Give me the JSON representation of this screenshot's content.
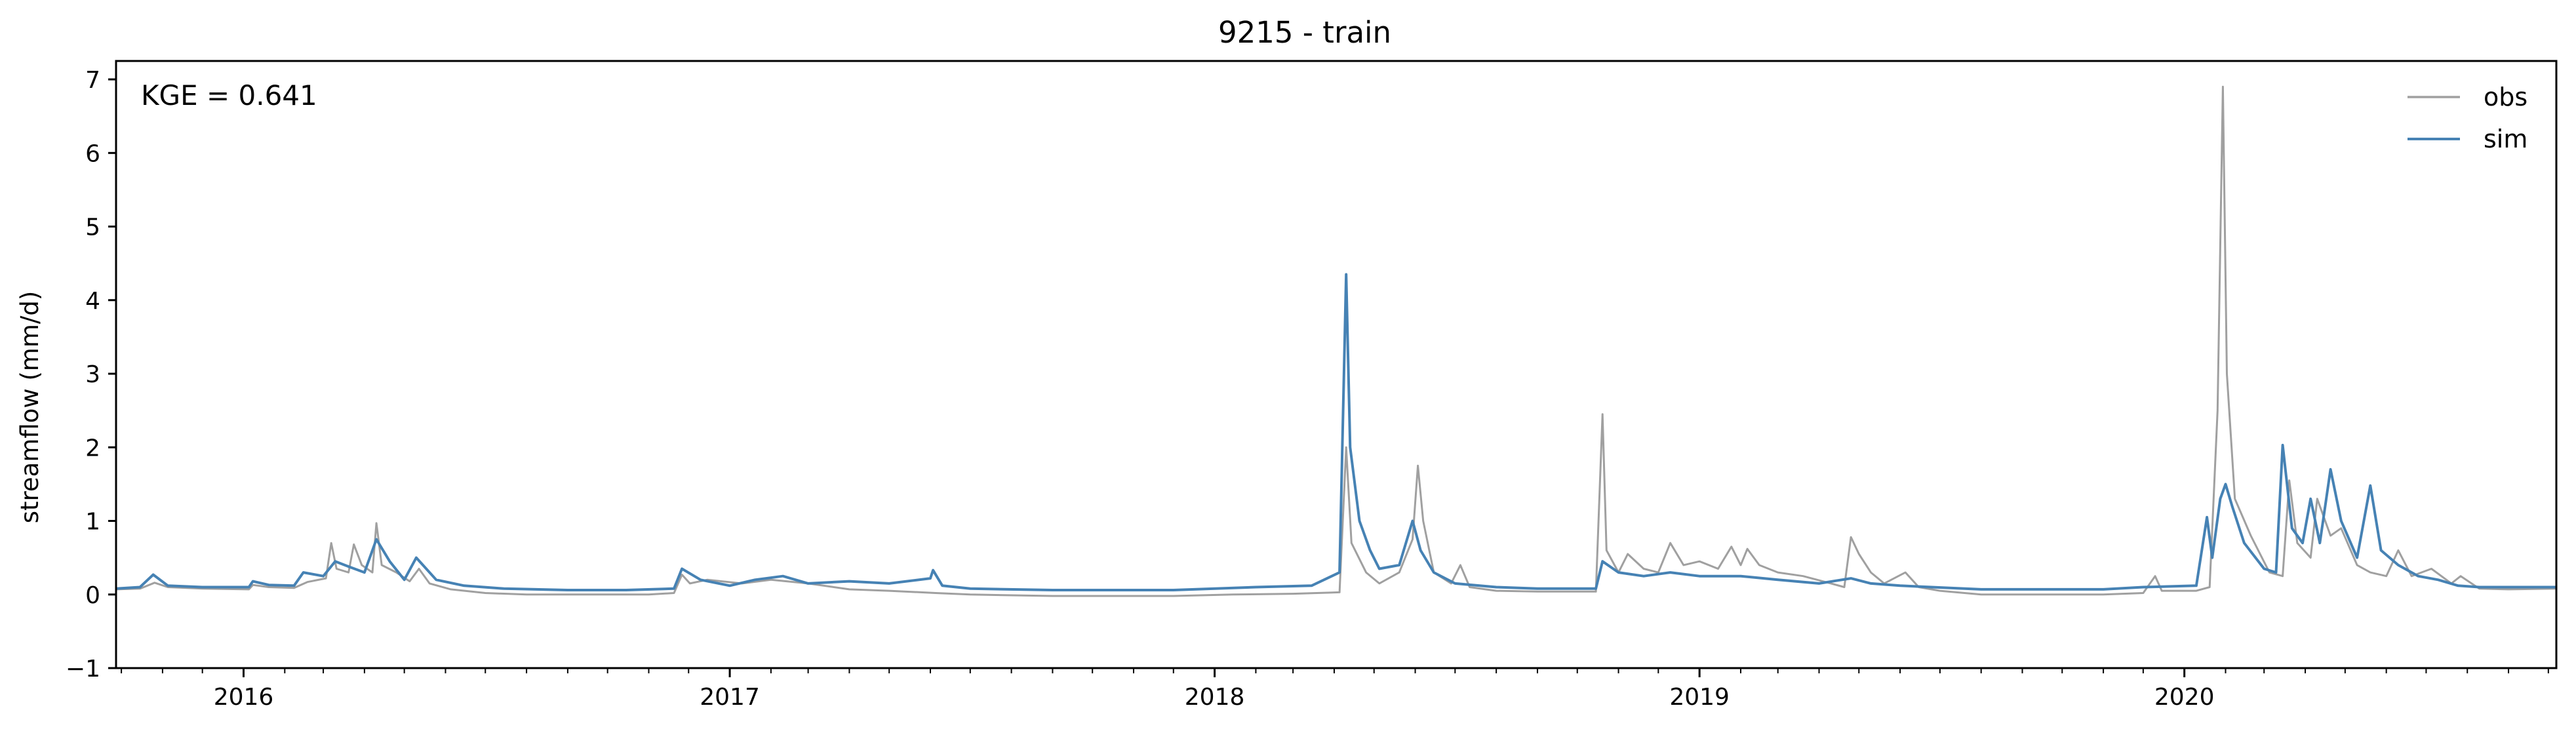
{
  "chart_data": {
    "type": "line",
    "title": "9215 - train",
    "xlabel": "",
    "ylabel": "streamflow (mm/d)",
    "xlim": [
      "2015-09-27",
      "2020-10-07"
    ],
    "ylim": [
      -1,
      7.25
    ],
    "x_tick_labels": [
      "2016",
      "2017",
      "2018",
      "2019",
      "2020"
    ],
    "y_tick_labels": [
      "−1",
      "0",
      "1",
      "2",
      "3",
      "4",
      "5",
      "6",
      "7"
    ],
    "grid": false,
    "legend_position": "top-right",
    "annotation": "KGE = 0.641",
    "colors": {
      "obs": "#a0a0a0",
      "sim": "#4682b4"
    },
    "series": [
      {
        "name": "obs",
        "points": [
          [
            "2015-09-27",
            0.07
          ],
          [
            "2015-10-15",
            0.08
          ],
          [
            "2015-10-26",
            0.16
          ],
          [
            "2015-11-05",
            0.1
          ],
          [
            "2015-12-01",
            0.08
          ],
          [
            "2016-01-05",
            0.07
          ],
          [
            "2016-01-08",
            0.13
          ],
          [
            "2016-01-20",
            0.1
          ],
          [
            "2016-02-08",
            0.09
          ],
          [
            "2016-02-18",
            0.17
          ],
          [
            "2016-03-03",
            0.22
          ],
          [
            "2016-03-07",
            0.7
          ],
          [
            "2016-03-11",
            0.35
          ],
          [
            "2016-03-20",
            0.3
          ],
          [
            "2016-03-24",
            0.68
          ],
          [
            "2016-03-30",
            0.4
          ],
          [
            "2016-04-07",
            0.3
          ],
          [
            "2016-04-10",
            0.97
          ],
          [
            "2016-04-14",
            0.4
          ],
          [
            "2016-04-25",
            0.3
          ],
          [
            "2016-05-05",
            0.18
          ],
          [
            "2016-05-12",
            0.35
          ],
          [
            "2016-05-20",
            0.15
          ],
          [
            "2016-06-05",
            0.07
          ],
          [
            "2016-07-01",
            0.02
          ],
          [
            "2016-08-01",
            0.0
          ],
          [
            "2016-10-01",
            0.0
          ],
          [
            "2016-11-01",
            0.0
          ],
          [
            "2016-11-20",
            0.02
          ],
          [
            "2016-11-26",
            0.27
          ],
          [
            "2016-12-02",
            0.15
          ],
          [
            "2016-12-15",
            0.2
          ],
          [
            "2017-01-10",
            0.15
          ],
          [
            "2017-02-01",
            0.2
          ],
          [
            "2017-03-01",
            0.15
          ],
          [
            "2017-04-01",
            0.07
          ],
          [
            "2017-05-01",
            0.05
          ],
          [
            "2017-06-05",
            0.02
          ],
          [
            "2017-07-01",
            0.0
          ],
          [
            "2017-09-01",
            -0.02
          ],
          [
            "2017-12-01",
            -0.02
          ],
          [
            "2018-01-15",
            0.0
          ],
          [
            "2018-03-01",
            0.01
          ],
          [
            "2018-04-05",
            0.03
          ],
          [
            "2018-04-10",
            2.0
          ],
          [
            "2018-04-14",
            0.7
          ],
          [
            "2018-04-25",
            0.3
          ],
          [
            "2018-05-05",
            0.15
          ],
          [
            "2018-05-20",
            0.3
          ],
          [
            "2018-05-30",
            0.75
          ],
          [
            "2018-06-03",
            1.75
          ],
          [
            "2018-06-07",
            1.0
          ],
          [
            "2018-06-15",
            0.3
          ],
          [
            "2018-06-28",
            0.15
          ],
          [
            "2018-07-05",
            0.4
          ],
          [
            "2018-07-12",
            0.1
          ],
          [
            "2018-08-01",
            0.05
          ],
          [
            "2018-09-01",
            0.04
          ],
          [
            "2018-10-15",
            0.04
          ],
          [
            "2018-10-20",
            2.45
          ],
          [
            "2018-10-23",
            0.6
          ],
          [
            "2018-11-01",
            0.3
          ],
          [
            "2018-11-08",
            0.55
          ],
          [
            "2018-11-20",
            0.35
          ],
          [
            "2018-12-01",
            0.3
          ],
          [
            "2018-12-10",
            0.7
          ],
          [
            "2018-12-20",
            0.4
          ],
          [
            "2019-01-01",
            0.45
          ],
          [
            "2019-01-15",
            0.35
          ],
          [
            "2019-01-25",
            0.65
          ],
          [
            "2019-02-01",
            0.4
          ],
          [
            "2019-02-06",
            0.62
          ],
          [
            "2019-02-15",
            0.4
          ],
          [
            "2019-03-01",
            0.3
          ],
          [
            "2019-03-20",
            0.25
          ],
          [
            "2019-04-10",
            0.15
          ],
          [
            "2019-04-20",
            0.1
          ],
          [
            "2019-04-25",
            0.78
          ],
          [
            "2019-05-01",
            0.55
          ],
          [
            "2019-05-10",
            0.3
          ],
          [
            "2019-05-20",
            0.15
          ],
          [
            "2019-06-05",
            0.3
          ],
          [
            "2019-06-15",
            0.1
          ],
          [
            "2019-07-01",
            0.05
          ],
          [
            "2019-08-01",
            0.0
          ],
          [
            "2019-11-01",
            0.0
          ],
          [
            "2019-12-01",
            0.02
          ],
          [
            "2019-12-10",
            0.25
          ],
          [
            "2019-12-15",
            0.05
          ],
          [
            "2020-01-10",
            0.05
          ],
          [
            "2020-01-20",
            0.1
          ],
          [
            "2020-01-26",
            2.5
          ],
          [
            "2020-01-30",
            6.9
          ],
          [
            "2020-02-02",
            3.0
          ],
          [
            "2020-02-08",
            1.3
          ],
          [
            "2020-02-20",
            0.8
          ],
          [
            "2020-03-05",
            0.3
          ],
          [
            "2020-03-15",
            0.25
          ],
          [
            "2020-03-20",
            1.55
          ],
          [
            "2020-03-26",
            0.7
          ],
          [
            "2020-04-05",
            0.5
          ],
          [
            "2020-04-10",
            1.3
          ],
          [
            "2020-04-20",
            0.8
          ],
          [
            "2020-04-28",
            0.9
          ],
          [
            "2020-05-10",
            0.4
          ],
          [
            "2020-05-20",
            0.3
          ],
          [
            "2020-06-01",
            0.25
          ],
          [
            "2020-06-10",
            0.6
          ],
          [
            "2020-06-20",
            0.25
          ],
          [
            "2020-07-05",
            0.35
          ],
          [
            "2020-07-20",
            0.15
          ],
          [
            "2020-07-27",
            0.25
          ],
          [
            "2020-08-10",
            0.08
          ],
          [
            "2020-09-01",
            0.07
          ],
          [
            "2020-10-07",
            0.08
          ]
        ]
      },
      {
        "name": "sim",
        "points": [
          [
            "2015-09-27",
            0.08
          ],
          [
            "2015-10-15",
            0.1
          ],
          [
            "2015-10-25",
            0.27
          ],
          [
            "2015-11-05",
            0.12
          ],
          [
            "2015-12-01",
            0.1
          ],
          [
            "2016-01-05",
            0.1
          ],
          [
            "2016-01-08",
            0.18
          ],
          [
            "2016-01-20",
            0.13
          ],
          [
            "2016-02-08",
            0.12
          ],
          [
            "2016-02-15",
            0.3
          ],
          [
            "2016-03-01",
            0.25
          ],
          [
            "2016-03-10",
            0.45
          ],
          [
            "2016-03-20",
            0.38
          ],
          [
            "2016-04-01",
            0.3
          ],
          [
            "2016-04-10",
            0.75
          ],
          [
            "2016-04-20",
            0.45
          ],
          [
            "2016-05-01",
            0.2
          ],
          [
            "2016-05-10",
            0.5
          ],
          [
            "2016-05-25",
            0.2
          ],
          [
            "2016-06-15",
            0.12
          ],
          [
            "2016-07-15",
            0.08
          ],
          [
            "2016-09-01",
            0.06
          ],
          [
            "2016-10-15",
            0.06
          ],
          [
            "2016-11-20",
            0.08
          ],
          [
            "2016-11-26",
            0.35
          ],
          [
            "2016-12-10",
            0.2
          ],
          [
            "2017-01-01",
            0.12
          ],
          [
            "2017-01-20",
            0.2
          ],
          [
            "2017-02-10",
            0.25
          ],
          [
            "2017-03-01",
            0.15
          ],
          [
            "2017-04-01",
            0.18
          ],
          [
            "2017-05-01",
            0.15
          ],
          [
            "2017-06-01",
            0.22
          ],
          [
            "2017-06-03",
            0.33
          ],
          [
            "2017-06-10",
            0.12
          ],
          [
            "2017-07-01",
            0.08
          ],
          [
            "2017-09-01",
            0.06
          ],
          [
            "2017-12-01",
            0.06
          ],
          [
            "2018-02-01",
            0.1
          ],
          [
            "2018-03-15",
            0.12
          ],
          [
            "2018-04-05",
            0.3
          ],
          [
            "2018-04-10",
            4.35
          ],
          [
            "2018-04-13",
            2.0
          ],
          [
            "2018-04-20",
            1.0
          ],
          [
            "2018-04-28",
            0.6
          ],
          [
            "2018-05-05",
            0.35
          ],
          [
            "2018-05-20",
            0.4
          ],
          [
            "2018-05-30",
            1.0
          ],
          [
            "2018-06-05",
            0.6
          ],
          [
            "2018-06-15",
            0.3
          ],
          [
            "2018-07-01",
            0.15
          ],
          [
            "2018-08-01",
            0.1
          ],
          [
            "2018-09-01",
            0.08
          ],
          [
            "2018-10-15",
            0.08
          ],
          [
            "2018-10-20",
            0.45
          ],
          [
            "2018-11-01",
            0.3
          ],
          [
            "2018-11-20",
            0.25
          ],
          [
            "2018-12-10",
            0.3
          ],
          [
            "2019-01-01",
            0.25
          ],
          [
            "2019-02-01",
            0.25
          ],
          [
            "2019-03-01",
            0.2
          ],
          [
            "2019-04-01",
            0.15
          ],
          [
            "2019-04-25",
            0.22
          ],
          [
            "2019-05-10",
            0.15
          ],
          [
            "2019-06-01",
            0.12
          ],
          [
            "2019-08-01",
            0.07
          ],
          [
            "2019-11-01",
            0.07
          ],
          [
            "2019-12-01",
            0.1
          ],
          [
            "2020-01-10",
            0.12
          ],
          [
            "2020-01-18",
            1.05
          ],
          [
            "2020-01-22",
            0.5
          ],
          [
            "2020-01-28",
            1.3
          ],
          [
            "2020-02-01",
            1.5
          ],
          [
            "2020-02-06",
            1.2
          ],
          [
            "2020-02-15",
            0.7
          ],
          [
            "2020-03-01",
            0.35
          ],
          [
            "2020-03-10",
            0.3
          ],
          [
            "2020-03-15",
            2.03
          ],
          [
            "2020-03-22",
            0.9
          ],
          [
            "2020-03-30",
            0.7
          ],
          [
            "2020-04-05",
            1.3
          ],
          [
            "2020-04-12",
            0.7
          ],
          [
            "2020-04-20",
            1.7
          ],
          [
            "2020-04-28",
            1.0
          ],
          [
            "2020-05-10",
            0.5
          ],
          [
            "2020-05-20",
            1.48
          ],
          [
            "2020-05-28",
            0.6
          ],
          [
            "2020-06-10",
            0.4
          ],
          [
            "2020-06-25",
            0.25
          ],
          [
            "2020-07-10",
            0.2
          ],
          [
            "2020-07-25",
            0.12
          ],
          [
            "2020-08-10",
            0.1
          ],
          [
            "2020-09-01",
            0.1
          ],
          [
            "2020-10-07",
            0.1
          ]
        ]
      }
    ]
  }
}
